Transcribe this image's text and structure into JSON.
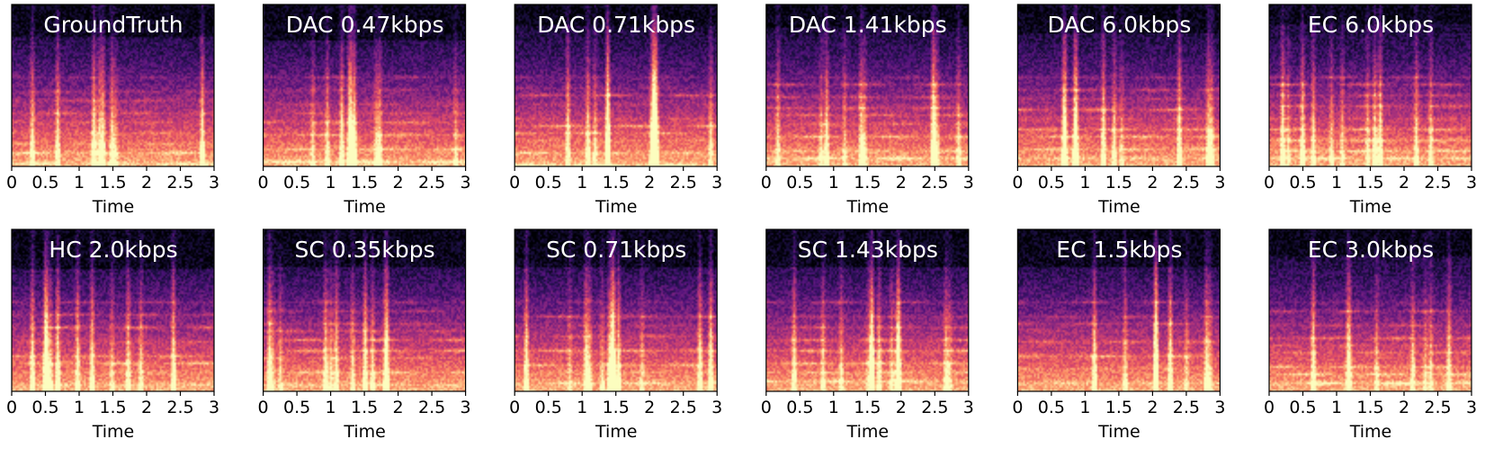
{
  "colors": {
    "colormap": [
      "#000004",
      "#1c1044",
      "#4f127b",
      "#812581",
      "#b5367a",
      "#e55064",
      "#fb8761",
      "#fec287",
      "#fcfdbf"
    ],
    "axis": "#000000",
    "title_text": "#ffffff"
  },
  "chart_data": [
    {
      "type": "heatmap",
      "title": "GroundTruth",
      "xlabel": "Time",
      "xticks": [
        "0",
        "0.5",
        "1",
        "1.5",
        "2",
        "2.5",
        "3"
      ],
      "xlim": [
        0,
        3
      ],
      "colormap": "magma"
    },
    {
      "type": "heatmap",
      "title": "DAC 0.47kbps",
      "xlabel": "Time",
      "xticks": [
        "0",
        "0.5",
        "1",
        "1.5",
        "2",
        "2.5",
        "3"
      ],
      "xlim": [
        0,
        3
      ],
      "colormap": "magma"
    },
    {
      "type": "heatmap",
      "title": "DAC 0.71kbps",
      "xlabel": "Time",
      "xticks": [
        "0",
        "0.5",
        "1",
        "1.5",
        "2",
        "2.5",
        "3"
      ],
      "xlim": [
        0,
        3
      ],
      "colormap": "magma"
    },
    {
      "type": "heatmap",
      "title": "DAC 1.41kbps",
      "xlabel": "Time",
      "xticks": [
        "0",
        "0.5",
        "1",
        "1.5",
        "2",
        "2.5",
        "3"
      ],
      "xlim": [
        0,
        3
      ],
      "colormap": "magma"
    },
    {
      "type": "heatmap",
      "title": "DAC 6.0kbps",
      "xlabel": "Time",
      "xticks": [
        "0",
        "0.5",
        "1",
        "1.5",
        "2",
        "2.5",
        "3"
      ],
      "xlim": [
        0,
        3
      ],
      "colormap": "magma"
    },
    {
      "type": "heatmap",
      "title": "EC 6.0kbps",
      "xlabel": "Time",
      "xticks": [
        "0",
        "0.5",
        "1",
        "1.5",
        "2",
        "2.5",
        "3"
      ],
      "xlim": [
        0,
        3
      ],
      "colormap": "magma"
    },
    {
      "type": "heatmap",
      "title": "HC 2.0kbps",
      "xlabel": "Time",
      "xticks": [
        "0",
        "0.5",
        "1",
        "1.5",
        "2",
        "2.5",
        "3"
      ],
      "xlim": [
        0,
        3
      ],
      "colormap": "magma"
    },
    {
      "type": "heatmap",
      "title": "SC 0.35kbps",
      "xlabel": "Time",
      "xticks": [
        "0",
        "0.5",
        "1",
        "1.5",
        "2",
        "2.5",
        "3"
      ],
      "xlim": [
        0,
        3
      ],
      "colormap": "magma"
    },
    {
      "type": "heatmap",
      "title": "SC 0.71kbps",
      "xlabel": "Time",
      "xticks": [
        "0",
        "0.5",
        "1",
        "1.5",
        "2",
        "2.5",
        "3"
      ],
      "xlim": [
        0,
        3
      ],
      "colormap": "magma"
    },
    {
      "type": "heatmap",
      "title": "SC 1.43kbps",
      "xlabel": "Time",
      "xticks": [
        "0",
        "0.5",
        "1",
        "1.5",
        "2",
        "2.5",
        "3"
      ],
      "xlim": [
        0,
        3
      ],
      "colormap": "magma"
    },
    {
      "type": "heatmap",
      "title": "EC 1.5kbps",
      "xlabel": "Time",
      "xticks": [
        "0",
        "0.5",
        "1",
        "1.5",
        "2",
        "2.5",
        "3"
      ],
      "xlim": [
        0,
        3
      ],
      "colormap": "magma"
    },
    {
      "type": "heatmap",
      "title": "EC 3.0kbps",
      "xlabel": "Time",
      "xticks": [
        "0",
        "0.5",
        "1",
        "1.5",
        "2",
        "2.5",
        "3"
      ],
      "xlim": [
        0,
        3
      ],
      "colormap": "magma"
    }
  ]
}
